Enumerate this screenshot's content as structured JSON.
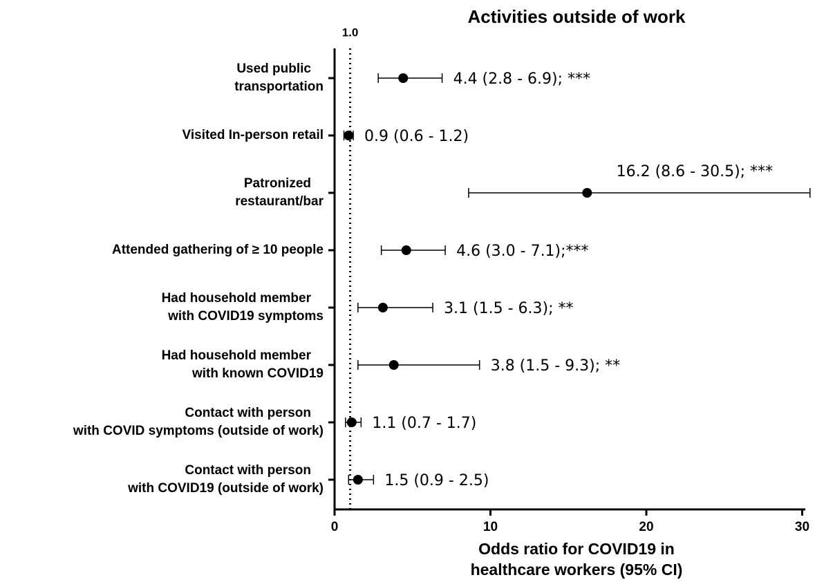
{
  "chart_data": {
    "type": "forest",
    "title": "Activities outside of work",
    "xlabel": [
      "Odds ratio for COVID19 in",
      "healthcare workers (95% CI)"
    ],
    "categories": [
      [
        "Used public",
        "transportation"
      ],
      [
        "Visited In-person retail"
      ],
      [
        "Patronized",
        "restaurant/bar"
      ],
      [
        "Attended gathering of ≥ 10 people"
      ],
      [
        "Had household member",
        "with COVID19 symptoms"
      ],
      [
        "Had household member",
        "with known COVID19"
      ],
      [
        "Contact with person",
        "with COVID symptoms (outside of work)"
      ],
      [
        "Contact with person",
        "with COVID19 (outside of work)"
      ]
    ],
    "values": [
      4.4,
      0.9,
      16.2,
      4.6,
      3.1,
      3.8,
      1.1,
      1.5
    ],
    "lower": [
      2.8,
      0.6,
      8.6,
      3.0,
      1.5,
      1.5,
      0.7,
      0.9
    ],
    "upper": [
      6.9,
      1.2,
      30.5,
      7.1,
      6.3,
      9.3,
      1.7,
      2.5
    ],
    "value_labels": [
      "4.4 (2.8 - 6.9); ***",
      "0.9 (0.6 - 1.2)",
      "16.2 (8.6 - 30.5); ***",
      "4.6 (3.0 - 7.1);***",
      "3.1 (1.5 - 6.3); **",
      "3.8 (1.5 - 9.3); **",
      "1.1 (0.7 - 1.7)",
      "1.5 (0.9 - 2.5)"
    ],
    "color": "#000000",
    "reference_line": {
      "value": 1,
      "label": "1.0"
    },
    "xlim": [
      0,
      30.2
    ],
    "xticks": [
      0,
      10,
      20,
      30
    ]
  }
}
